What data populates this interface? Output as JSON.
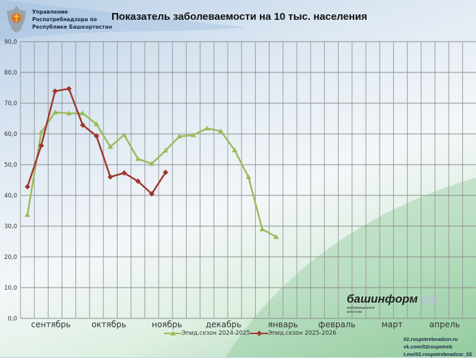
{
  "header": {
    "org_lines": [
      "Управление",
      "Роспотребнадзора по",
      "Республике Башкортостан"
    ],
    "title": "Показатель заболеваемости на 10 тыс. населения"
  },
  "brand": {
    "name": "башинформ",
    "tld": ".рф",
    "subtitle_lines": [
      "информационное",
      "агентство"
    ]
  },
  "links": [
    "02.rospotrebnadzor.ru",
    "vk.com/02rospotreb",
    "t.me/02.rospotrebnadzor_02"
  ],
  "chart_data": {
    "type": "line",
    "title": "Показатель заболеваемости на 10 тыс. населения",
    "ylim": [
      0,
      90
    ],
    "yticks": [
      "0,0",
      "10,0",
      "20,0",
      "30,0",
      "40,0",
      "50,0",
      "60,0",
      "70,0",
      "80,0",
      "90,0"
    ],
    "x_month_labels": [
      "сентябрь",
      "октябрь",
      "ноябрь",
      "декабрь",
      "январь",
      "февраль",
      "март",
      "апрель"
    ],
    "grid": true,
    "legend_position": "bottom",
    "series": [
      {
        "name": "Эпид.сезон 2024-2025",
        "color": "#9bbb59",
        "marker": "triangle",
        "values": [
          33.7,
          60.5,
          67.0,
          66.7,
          66.7,
          63.2,
          55.8,
          59.7,
          51.9,
          50.3,
          54.6,
          59.2,
          59.6,
          61.8,
          60.9,
          54.7,
          46.0,
          29.0,
          26.5
        ]
      },
      {
        "name": "Эпид.сезон 2025-2026",
        "color": "#a0362d",
        "marker": "diamond",
        "values": [
          42.8,
          56.2,
          73.9,
          74.7,
          62.9,
          59.3,
          46.0,
          47.3,
          44.6,
          40.5,
          47.5
        ]
      }
    ]
  }
}
